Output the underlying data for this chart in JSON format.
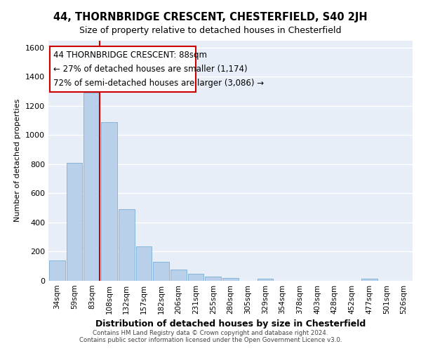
{
  "title_line1": "44, THORNBRIDGE CRESCENT, CHESTERFIELD, S40 2JH",
  "title_line2": "Size of property relative to detached houses in Chesterfield",
  "xlabel": "Distribution of detached houses by size in Chesterfield",
  "ylabel": "Number of detached properties",
  "categories": [
    "34sqm",
    "59sqm",
    "83sqm",
    "108sqm",
    "132sqm",
    "157sqm",
    "182sqm",
    "206sqm",
    "231sqm",
    "255sqm",
    "280sqm",
    "305sqm",
    "329sqm",
    "354sqm",
    "378sqm",
    "403sqm",
    "428sqm",
    "452sqm",
    "477sqm",
    "501sqm",
    "526sqm"
  ],
  "values": [
    140,
    810,
    1290,
    1090,
    490,
    235,
    130,
    75,
    50,
    30,
    20,
    0,
    15,
    0,
    0,
    0,
    0,
    0,
    15,
    0,
    0
  ],
  "bar_color": "#b8d0ea",
  "bar_edge_color": "#7aafd4",
  "background_color": "#e8eef8",
  "grid_color": "#ffffff",
  "annotation_box_color": "#cc0000",
  "red_line_bar_index": 2,
  "annotation_text_line1": "44 THORNBRIDGE CRESCENT: 88sqm",
  "annotation_text_line2": "← 27% of detached houses are smaller (1,174)",
  "annotation_text_line3": "72% of semi-detached houses are larger (3,086) →",
  "ylim": [
    0,
    1650
  ],
  "yticks": [
    0,
    200,
    400,
    600,
    800,
    1000,
    1200,
    1400,
    1600
  ],
  "footer_line1": "Contains HM Land Registry data © Crown copyright and database right 2024.",
  "footer_line2": "Contains public sector information licensed under the Open Government Licence v3.0."
}
